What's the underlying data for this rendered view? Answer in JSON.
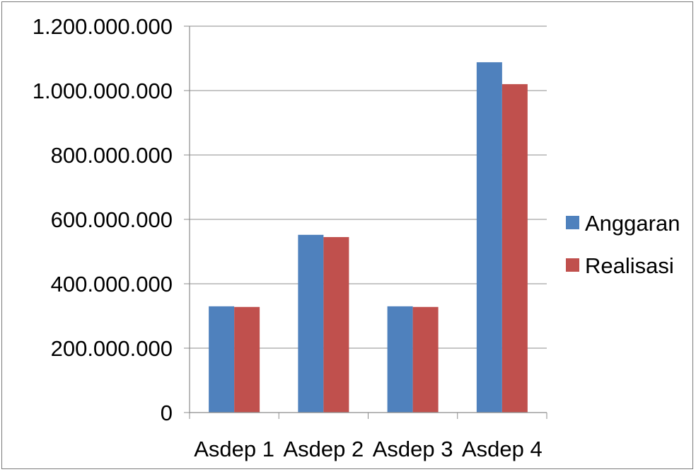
{
  "chart_data": {
    "type": "bar",
    "categories": [
      "Asdep 1",
      "Asdep 2",
      "Asdep 3",
      "Asdep 4"
    ],
    "series": [
      {
        "name": "Anggaran",
        "color": "#4f81bd",
        "values": [
          330000000,
          552000000,
          330000000,
          1088000000
        ]
      },
      {
        "name": "Realisasi",
        "color": "#c0504d",
        "values": [
          328000000,
          545000000,
          328000000,
          1020000000
        ]
      }
    ],
    "yticks": [
      "0",
      "200.000.000",
      "400.000.000",
      "600.000.000",
      "800.000.000",
      "1.000.000.000",
      "1.200.000.000"
    ],
    "ylim": [
      0,
      1200000000
    ],
    "grid": true,
    "legend_position": "right"
  }
}
